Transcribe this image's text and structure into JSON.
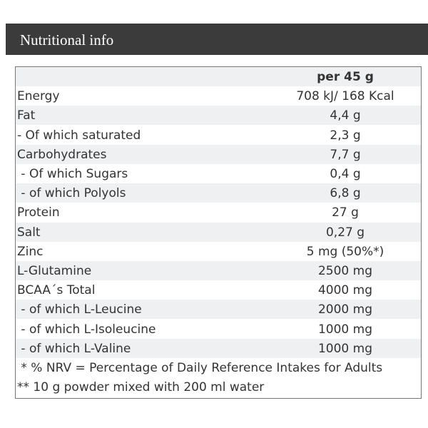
{
  "header": {
    "title": "Nutritional info"
  },
  "table": {
    "column_header": "per 45 g",
    "rows": [
      [
        "Energy",
        "708 kJ/ 168 Kcal"
      ],
      [
        "Fat",
        "4,4 g"
      ],
      [
        "- Of which saturated",
        "2,3 g"
      ],
      [
        "Carbohydrates",
        "7,7 g"
      ],
      [
        " - Of which Sugars",
        "0,4 g"
      ],
      [
        " - of which Polyols",
        "6,8 g"
      ],
      [
        "Protein",
        "27 g"
      ],
      [
        "Salt",
        "0,27 g"
      ],
      [
        "Zinc",
        "5 mg (50%*)"
      ],
      [
        "L-Glutamine",
        "2500 mg"
      ],
      [
        "BCAA´s Total",
        "4000 mg"
      ],
      [
        " - of which L-Leucine",
        "2000 mg"
      ],
      [
        " - of which L-Isoleucine",
        "1000 mg"
      ],
      [
        " - of which L-Valine",
        "1000 mg"
      ]
    ],
    "footnotes": [
      " * % NRV = Percentage of Daily Reference Intakes for Adults",
      "** 10 g powder mixed with 200 ml water"
    ]
  }
}
